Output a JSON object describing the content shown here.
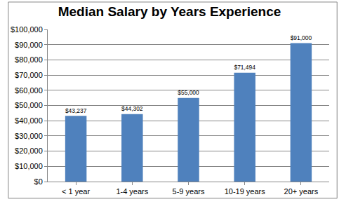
{
  "chart_data": {
    "type": "bar",
    "title": "Median Salary by Years Experience",
    "categories": [
      "< 1 year",
      "1-4 years",
      "5-9 years",
      "10-19 years",
      "20+ years"
    ],
    "values": [
      43237,
      44302,
      55000,
      71494,
      91000
    ],
    "value_labels": [
      "$43,237",
      "$44,302",
      "$55,000",
      "$71,494",
      "$91,000"
    ],
    "data_labels": true,
    "color": "#4f81bd",
    "ylim": [
      0,
      100000
    ],
    "yticks": [
      {
        "value": 0,
        "label": "$0"
      },
      {
        "value": 10000,
        "label": "$10,000"
      },
      {
        "value": 20000,
        "label": "$20,000"
      },
      {
        "value": 30000,
        "label": "$30,000"
      },
      {
        "value": 40000,
        "label": "$40,000"
      },
      {
        "value": 50000,
        "label": "$50,000"
      },
      {
        "value": 60000,
        "label": "$60,000"
      },
      {
        "value": 70000,
        "label": "$70,000"
      },
      {
        "value": 80000,
        "label": "$80,000"
      },
      {
        "value": 90000,
        "label": "$90,000"
      },
      {
        "value": 100000,
        "label": "$100,000"
      }
    ],
    "grid": true
  }
}
